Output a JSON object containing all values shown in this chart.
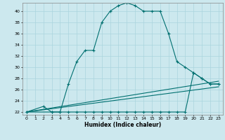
{
  "xlabel": "Humidex (Indice chaleur)",
  "ylabel": "",
  "background_color": "#cce8ee",
  "line_color": "#007070",
  "grid_color": "#aad4dd",
  "xlim": [
    -0.5,
    23.5
  ],
  "ylim": [
    21.5,
    41.5
  ],
  "yticks": [
    22,
    24,
    26,
    28,
    30,
    32,
    34,
    36,
    38,
    40
  ],
  "xticks": [
    0,
    1,
    2,
    3,
    4,
    5,
    6,
    7,
    8,
    9,
    10,
    11,
    12,
    13,
    14,
    15,
    16,
    17,
    18,
    19,
    20,
    21,
    22,
    23
  ],
  "series1_x": [
    0,
    2,
    3,
    4,
    5,
    6,
    7,
    8,
    9,
    10,
    11,
    12,
    13,
    14,
    15,
    16,
    17,
    18,
    19,
    20,
    21,
    22,
    23
  ],
  "series1_y": [
    22,
    23,
    22,
    22,
    27,
    31,
    33,
    33,
    38,
    40,
    41,
    41.5,
    41,
    40,
    40,
    40,
    36,
    31,
    30,
    29,
    28,
    27,
    27
  ],
  "series2_x": [
    0,
    3,
    4,
    5,
    6,
    7,
    8,
    9,
    10,
    11,
    12,
    13,
    14,
    15,
    16,
    17,
    18,
    19,
    20,
    21,
    22,
    23
  ],
  "series2_y": [
    22,
    22,
    22,
    22,
    22,
    22,
    22,
    22,
    22,
    22,
    22,
    22,
    22,
    22,
    22,
    22,
    22,
    22,
    29,
    28,
    27,
    27
  ],
  "series3_x": [
    0,
    23
  ],
  "series3_y": [
    22,
    26.5
  ],
  "series4_x": [
    0,
    23
  ],
  "series4_y": [
    22,
    27.5
  ]
}
